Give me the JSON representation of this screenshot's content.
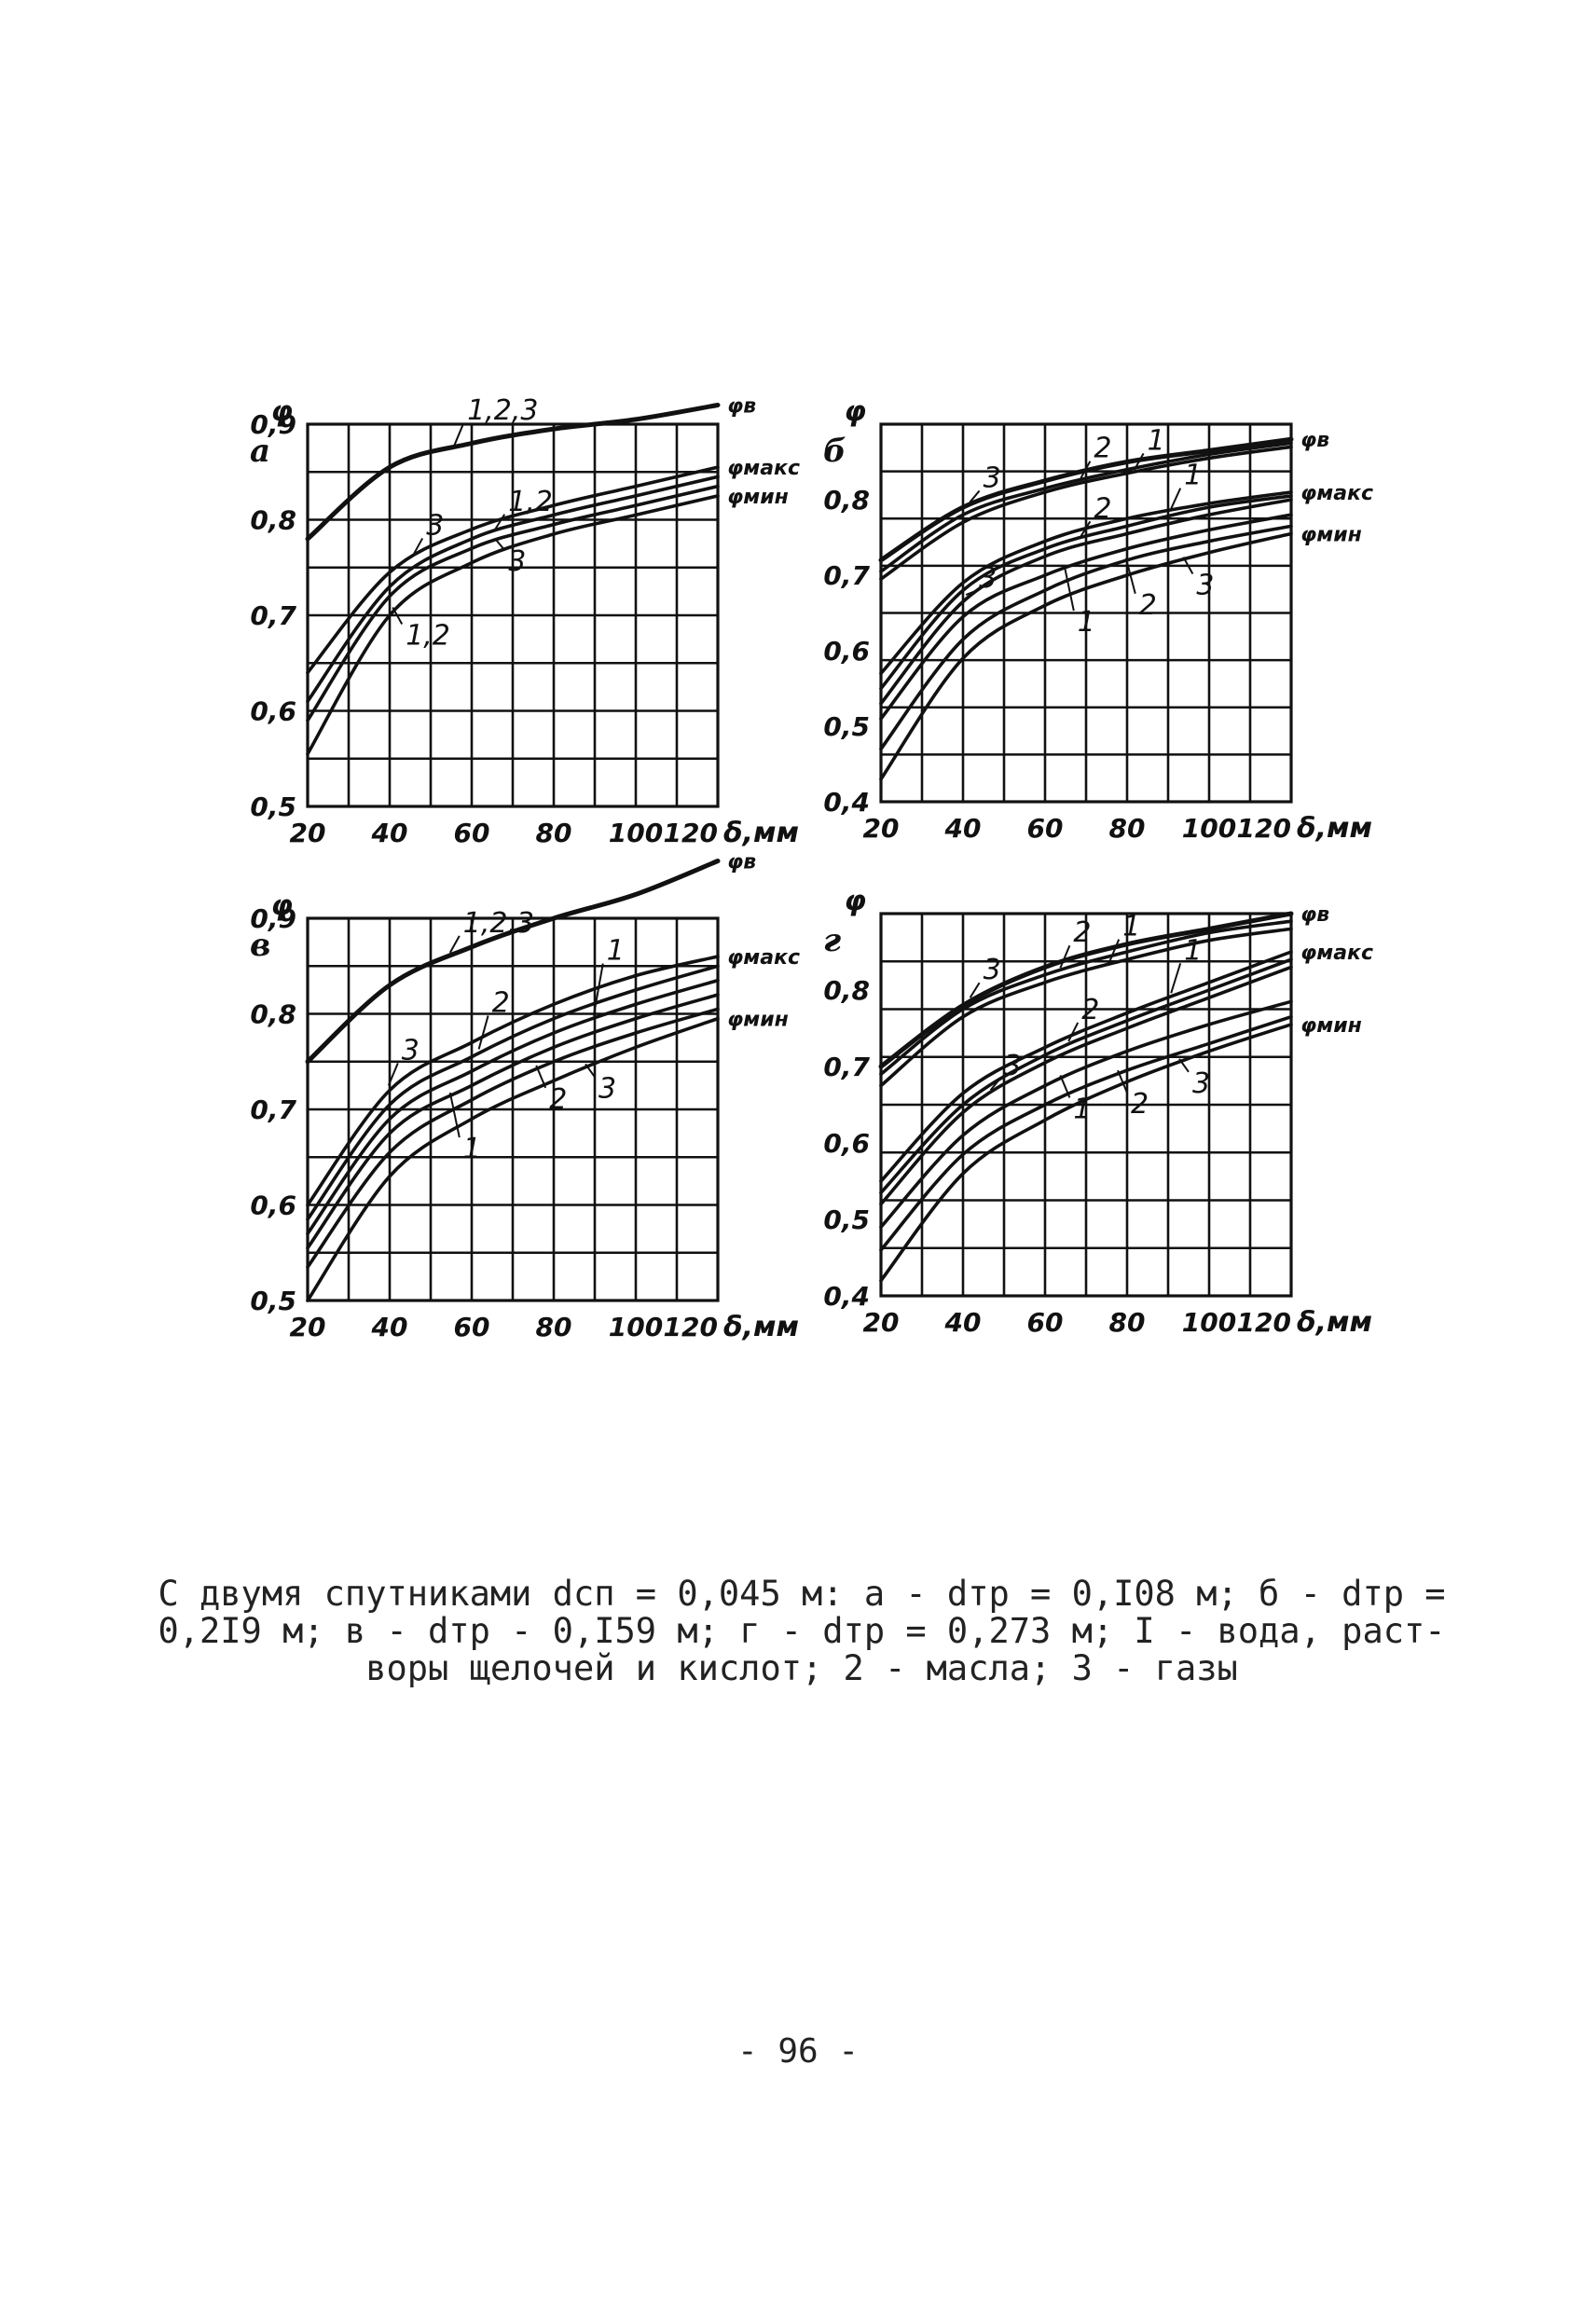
{
  "page_number": "- 96 -",
  "caption": {
    "lines": [
      "С двумя спутниками dсп = 0,045 м: а - dтр = 0,I08 м; б - dтр =",
      "0,2I9 м; в - dтр - 0,I59 м; г - dтр = 0,273 м; I - вода, раст-",
      "воры щелочей и кислот; 2 - масла; 3 - газы"
    ]
  },
  "chart_data": [
    {
      "id": "a",
      "type": "line",
      "panel_label": "а",
      "ylabel": "φ",
      "xlabel": "δ,мм",
      "xlim": [
        20,
        120
      ],
      "ylim": [
        0.5,
        0.9
      ],
      "x_ticks": [
        "20",
        "40",
        "60",
        "80",
        "100",
        "120"
      ],
      "y_ticks": [
        "0,5",
        "0,6",
        "0,7",
        "0,8",
        "0,9"
      ],
      "grid": true,
      "x": [
        20,
        40,
        60,
        80,
        100,
        120
      ],
      "series": [
        {
          "name": "φв",
          "values": [
            0.78,
            0.855,
            0.88,
            0.895,
            0.905,
            0.92
          ]
        },
        {
          "name": "φмакс",
          "values": [
            0.64,
            0.745,
            0.79,
            0.815,
            0.835,
            0.855
          ]
        },
        {
          "values": [
            0.61,
            0.73,
            0.78,
            0.805,
            0.825,
            0.845
          ]
        },
        {
          "values": [
            0.59,
            0.72,
            0.77,
            0.795,
            0.815,
            0.835
          ]
        },
        {
          "name": "φмин",
          "values": [
            0.555,
            0.7,
            0.755,
            0.785,
            0.805,
            0.825
          ]
        }
      ],
      "annotations": [
        "1,2,3",
        "3",
        "1,2",
        "3",
        "1,2"
      ]
    },
    {
      "id": "b",
      "type": "line",
      "panel_label": "б",
      "ylabel": "φ",
      "xlabel": "δ,мм",
      "xlim": [
        20,
        120
      ],
      "ylim": [
        0.4,
        0.9
      ],
      "x_ticks": [
        "20",
        "40",
        "60",
        "80",
        "100",
        "120"
      ],
      "y_ticks": [
        "0,4",
        "0,5",
        "0,6",
        "0,7",
        "0,8"
      ],
      "grid": true,
      "x": [
        20,
        40,
        60,
        80,
        100,
        120
      ],
      "series": [
        {
          "name": "φв",
          "values": [
            0.72,
            0.79,
            0.825,
            0.85,
            0.865,
            0.88
          ]
        },
        {
          "values": [
            0.705,
            0.78,
            0.815,
            0.84,
            0.86,
            0.875
          ]
        },
        {
          "values": [
            0.695,
            0.77,
            0.81,
            0.835,
            0.855,
            0.87
          ]
        },
        {
          "name": "φмакс",
          "values": [
            0.57,
            0.69,
            0.745,
            0.775,
            0.795,
            0.81
          ]
        },
        {
          "values": [
            0.55,
            0.68,
            0.735,
            0.765,
            0.79,
            0.805
          ]
        },
        {
          "values": [
            0.53,
            0.665,
            0.725,
            0.755,
            0.78,
            0.8
          ]
        },
        {
          "values": [
            0.51,
            0.645,
            0.7,
            0.735,
            0.76,
            0.78
          ]
        },
        {
          "values": [
            0.47,
            0.615,
            0.68,
            0.72,
            0.745,
            0.765
          ]
        },
        {
          "name": "φмин",
          "values": [
            0.43,
            0.59,
            0.66,
            0.7,
            0.73,
            0.755
          ]
        }
      ],
      "annotations": [
        "3",
        "2",
        "1",
        "1",
        "2",
        "3",
        "1",
        "2",
        "3"
      ]
    },
    {
      "id": "v",
      "type": "line",
      "panel_label": "в",
      "ylabel": "φ",
      "xlabel": "δ,мм",
      "xlim": [
        20,
        120
      ],
      "ylim": [
        0.5,
        0.9
      ],
      "x_ticks": [
        "20",
        "40",
        "60",
        "80",
        "100",
        "120"
      ],
      "y_ticks": [
        "0,5",
        "0,6",
        "0,7",
        "0,8",
        "0,9"
      ],
      "grid": true,
      "x": [
        20,
        40,
        60,
        80,
        100,
        120
      ],
      "series": [
        {
          "name": "φв",
          "values": [
            0.75,
            0.83,
            0.87,
            0.9,
            0.925,
            0.96
          ]
        },
        {
          "name": "φмакс",
          "values": [
            0.6,
            0.72,
            0.77,
            0.81,
            0.84,
            0.86
          ]
        },
        {
          "values": [
            0.585,
            0.705,
            0.755,
            0.795,
            0.825,
            0.85
          ]
        },
        {
          "values": [
            0.57,
            0.69,
            0.74,
            0.78,
            0.81,
            0.835
          ]
        },
        {
          "values": [
            0.555,
            0.675,
            0.725,
            0.765,
            0.795,
            0.82
          ]
        },
        {
          "values": [
            0.535,
            0.655,
            0.71,
            0.75,
            0.78,
            0.805
          ]
        },
        {
          "name": "φмин",
          "values": [
            0.5,
            0.63,
            0.69,
            0.73,
            0.765,
            0.795
          ]
        }
      ],
      "annotations": [
        "1,2,3",
        "3",
        "2",
        "1",
        "1",
        "2",
        "3"
      ]
    },
    {
      "id": "g",
      "type": "line",
      "panel_label": "г",
      "ylabel": "φ",
      "xlabel": "δ,мм",
      "xlim": [
        20,
        120
      ],
      "ylim": [
        0.4,
        0.9
      ],
      "x_ticks": [
        "20",
        "40",
        "60",
        "80",
        "100",
        "120"
      ],
      "y_ticks": [
        "0,4",
        "0,5",
        "0,6",
        "0,7",
        "0,8"
      ],
      "grid": true,
      "x": [
        20,
        40,
        60,
        80,
        100,
        120
      ],
      "series": [
        {
          "name": "φв",
          "values": [
            0.7,
            0.78,
            0.83,
            0.86,
            0.88,
            0.9
          ]
        },
        {
          "values": [
            0.69,
            0.775,
            0.82,
            0.85,
            0.875,
            0.89
          ]
        },
        {
          "values": [
            0.675,
            0.765,
            0.81,
            0.84,
            0.865,
            0.88
          ]
        },
        {
          "name": "φмакс",
          "values": [
            0.55,
            0.665,
            0.725,
            0.77,
            0.81,
            0.85
          ]
        },
        {
          "values": [
            0.535,
            0.65,
            0.715,
            0.76,
            0.8,
            0.84
          ]
        },
        {
          "values": [
            0.52,
            0.64,
            0.705,
            0.75,
            0.79,
            0.83
          ]
        },
        {
          "values": [
            0.49,
            0.61,
            0.675,
            0.72,
            0.755,
            0.785
          ]
        },
        {
          "values": [
            0.46,
            0.585,
            0.65,
            0.695,
            0.73,
            0.765
          ]
        },
        {
          "name": "φмин",
          "values": [
            0.42,
            0.56,
            0.63,
            0.68,
            0.72,
            0.755
          ]
        }
      ],
      "annotations": [
        "3",
        "2",
        "1",
        "1",
        "2",
        "3",
        "1",
        "2",
        "3"
      ]
    }
  ]
}
